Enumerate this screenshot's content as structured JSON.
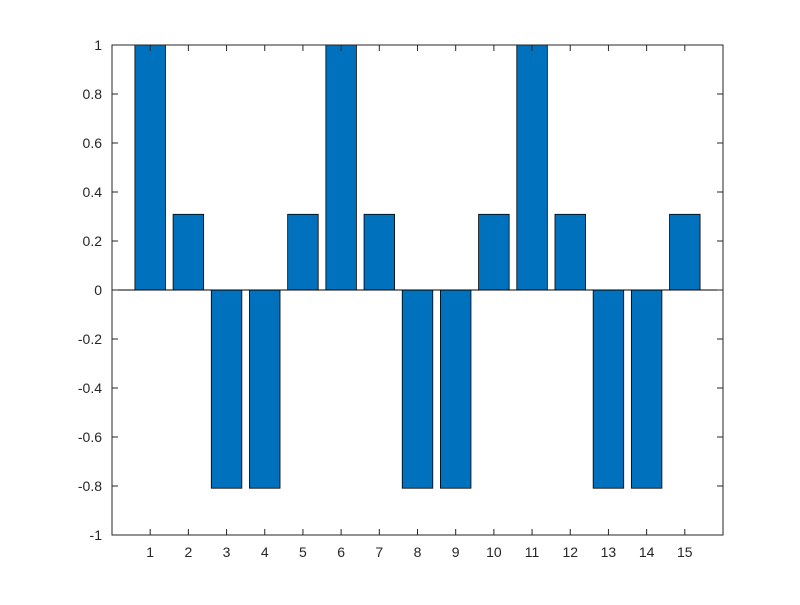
{
  "chart_data": {
    "type": "bar",
    "title": "",
    "xlabel": "",
    "ylabel": "",
    "categories": [
      1,
      2,
      3,
      4,
      5,
      6,
      7,
      8,
      9,
      10,
      11,
      12,
      13,
      14,
      15
    ],
    "values": [
      1.0,
      0.309,
      -0.809,
      -0.809,
      0.309,
      1.0,
      0.309,
      -0.809,
      -0.809,
      0.309,
      1.0,
      0.309,
      -0.809,
      -0.809,
      0.309
    ],
    "ylim": [
      -1,
      1
    ],
    "xlim": [
      0,
      16
    ],
    "yticks": [
      -1,
      -0.8,
      -0.6,
      -0.4,
      -0.2,
      0,
      0.2,
      0.4,
      0.6,
      0.8,
      1
    ],
    "ytick_labels": [
      "-1",
      "-0.8",
      "-0.6",
      "-0.4",
      "-0.2",
      "0",
      "0.2",
      "0.4",
      "0.6",
      "0.8",
      "1"
    ],
    "xtick_labels": [
      "1",
      "2",
      "3",
      "4",
      "5",
      "6",
      "7",
      "8",
      "9",
      "10",
      "11",
      "12",
      "13",
      "14",
      "15"
    ],
    "bar_color": "#0072BD",
    "bar_edge_color": "#000000",
    "grid": false,
    "legend": "none"
  }
}
